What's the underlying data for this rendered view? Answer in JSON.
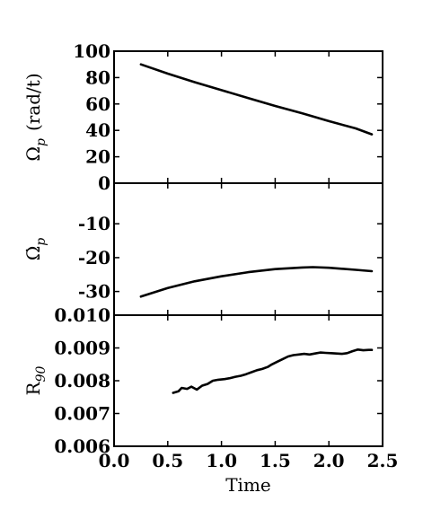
{
  "chart_data": [
    {
      "type": "line",
      "panel": "top",
      "ylabel_main": "Ω",
      "ylabel_sub": "p",
      "ylabel_unit": "(rad/t)",
      "xlim": [
        0.0,
        2.5
      ],
      "ylim": [
        0,
        100
      ],
      "yticks": [
        0,
        20,
        40,
        60,
        80,
        100
      ],
      "ytick_labels": [
        "0",
        "20",
        "40",
        "60",
        "80",
        "100"
      ],
      "x": [
        0.25,
        0.5,
        0.75,
        1.0,
        1.25,
        1.5,
        1.75,
        2.0,
        2.25,
        2.4
      ],
      "y": [
        90,
        83,
        76.5,
        70.5,
        64.5,
        58.5,
        53,
        47,
        41.5,
        37
      ]
    },
    {
      "type": "line",
      "panel": "middle",
      "ylabel_main": "Ω̇",
      "ylabel_sub": "p",
      "xlim": [
        0.0,
        2.5
      ],
      "ylim": [
        -37,
        2
      ],
      "yticks": [
        -10,
        -20,
        -30
      ],
      "ytick_labels": [
        "-10",
        "-20",
        "-30"
      ],
      "x": [
        0.25,
        0.5,
        0.75,
        1.0,
        1.25,
        1.5,
        1.75,
        1.85,
        2.0,
        2.25,
        2.4
      ],
      "y": [
        -31.5,
        -29.0,
        -27.0,
        -25.5,
        -24.3,
        -23.4,
        -22.9,
        -22.8,
        -23.0,
        -23.6,
        -24.0
      ]
    },
    {
      "type": "line",
      "panel": "bottom",
      "ylabel_main": "R",
      "ylabel_sub": "90",
      "xlabel": "Time",
      "xlim": [
        0.0,
        2.5
      ],
      "ylim": [
        0.006,
        0.01
      ],
      "yticks": [
        0.006,
        0.007,
        0.008,
        0.009,
        0.01
      ],
      "ytick_labels": [
        "0.006",
        "0.007",
        "0.008",
        "0.009",
        "0.010"
      ],
      "xticks": [
        0.0,
        0.5,
        1.0,
        1.5,
        2.0,
        2.5
      ],
      "xtick_labels": [
        "0.0",
        "0.5",
        "1.0",
        "1.5",
        "2.0",
        "2.5"
      ],
      "x": [
        0.55,
        0.6,
        0.63,
        0.68,
        0.72,
        0.77,
        0.82,
        0.87,
        0.92,
        0.97,
        1.03,
        1.08,
        1.13,
        1.18,
        1.23,
        1.28,
        1.33,
        1.38,
        1.43,
        1.47,
        1.52,
        1.57,
        1.62,
        1.67,
        1.72,
        1.77,
        1.82,
        1.87,
        1.92,
        1.97,
        2.02,
        2.07,
        2.12,
        2.17,
        2.22,
        2.27,
        2.32,
        2.37,
        2.4
      ],
      "y": [
        0.00763,
        0.00768,
        0.00778,
        0.00775,
        0.00782,
        0.00773,
        0.00785,
        0.0079,
        0.008,
        0.00803,
        0.00805,
        0.00808,
        0.00812,
        0.00815,
        0.0082,
        0.00826,
        0.00832,
        0.00836,
        0.00842,
        0.0085,
        0.00858,
        0.00866,
        0.00874,
        0.00878,
        0.0088,
        0.00882,
        0.0088,
        0.00883,
        0.00886,
        0.00885,
        0.00884,
        0.00883,
        0.00882,
        0.00884,
        0.0089,
        0.00895,
        0.00893,
        0.00894,
        0.00894
      ]
    }
  ]
}
